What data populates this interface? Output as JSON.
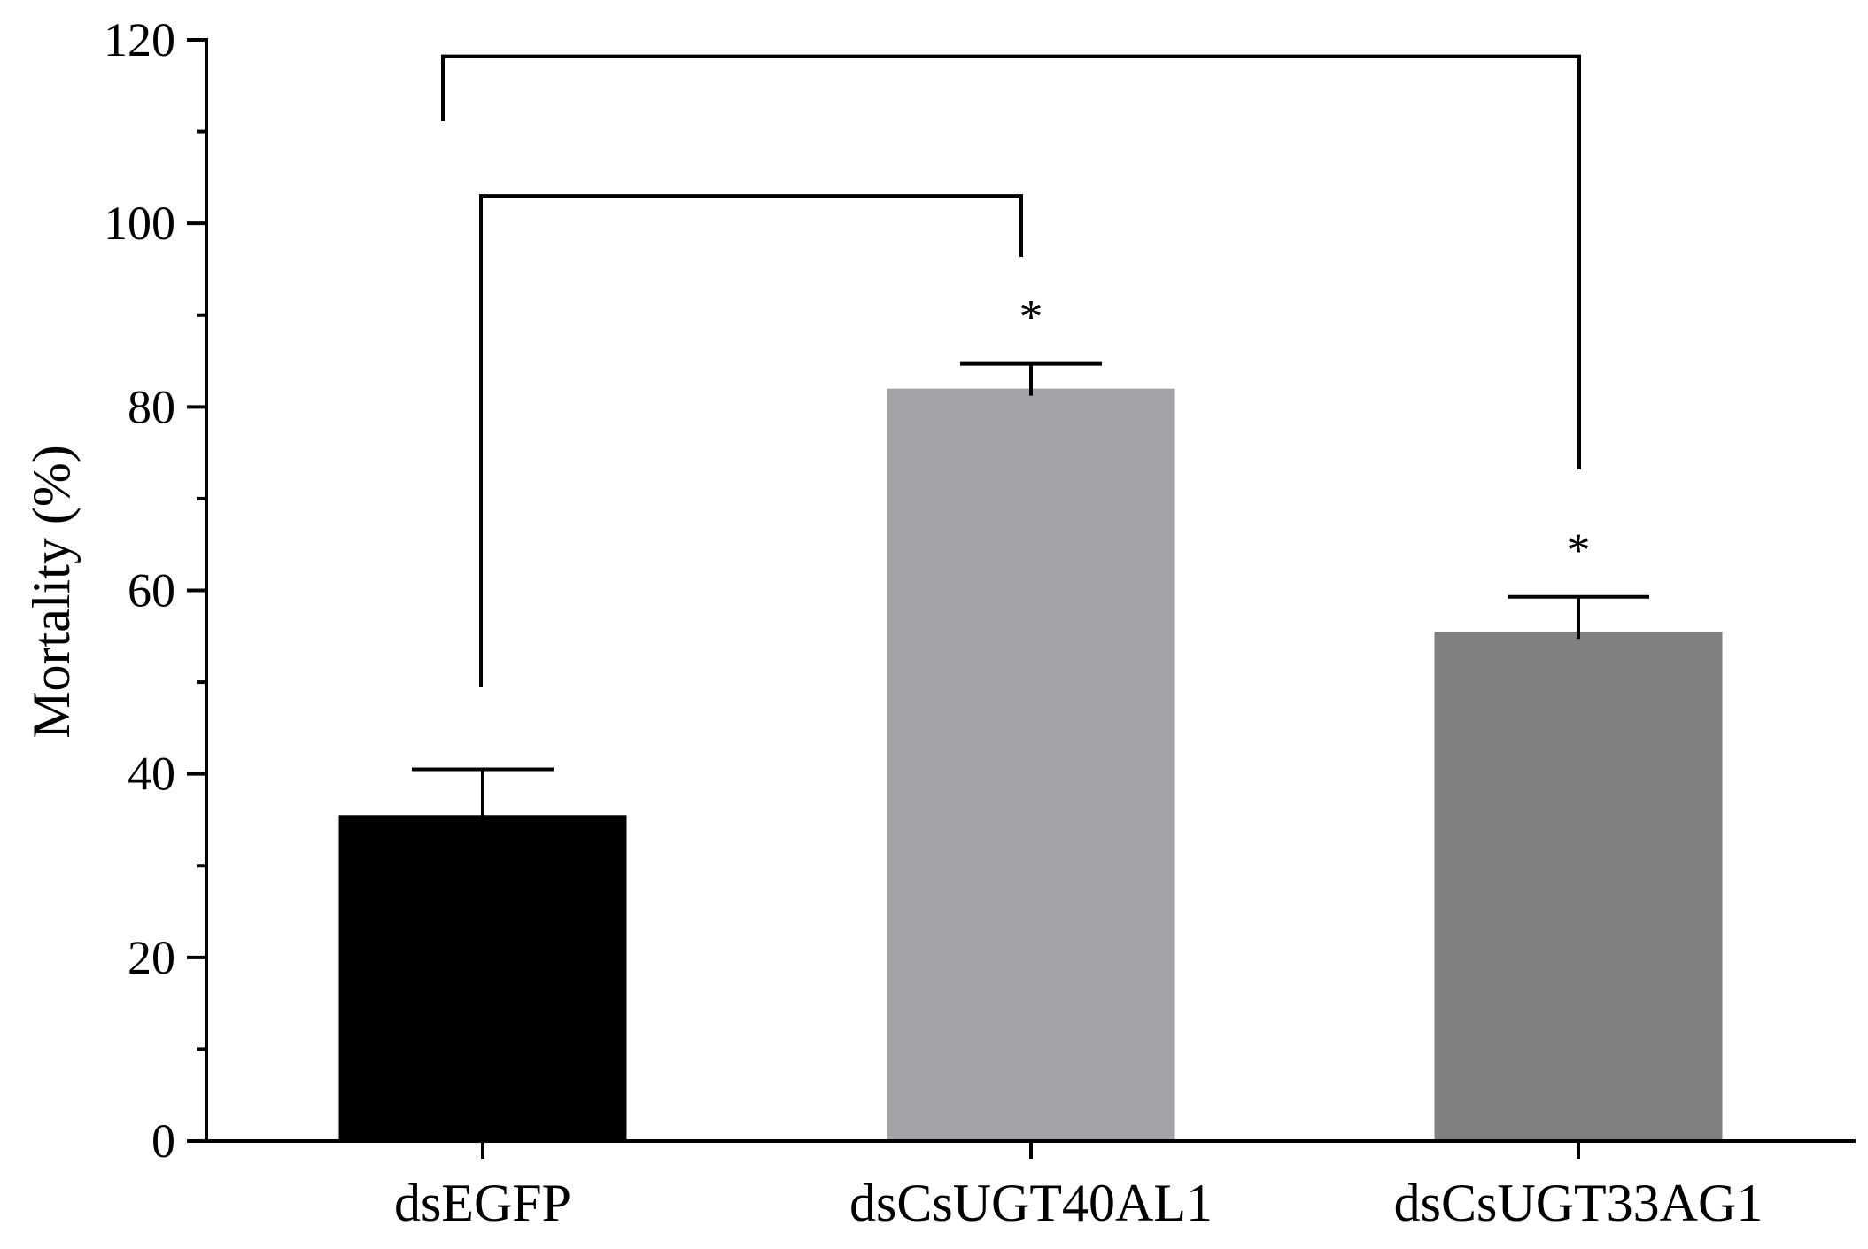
{
  "chart_data": {
    "type": "bar",
    "title": "",
    "xlabel": "",
    "ylabel": "Mortality (%)",
    "ylim": [
      0,
      120
    ],
    "yticks": [
      0,
      20,
      40,
      60,
      80,
      100,
      120
    ],
    "yticks_text": [
      "0",
      "20",
      "40",
      "60",
      "80",
      "100",
      "120"
    ],
    "categories": [
      "dsEGFP",
      "dsCsUGT40AL1",
      "dsCsUGT33AG1"
    ],
    "values": [
      35.5,
      82,
      55.5
    ],
    "error": [
      5.0,
      2.7,
      3.8
    ],
    "colors": [
      "#000000",
      "#a2a3a7",
      "#808080"
    ],
    "significance_marks": [
      "",
      "*",
      "*"
    ],
    "comparisons": [
      {
        "from": "dsEGFP",
        "to": "dsCsUGT40AL1"
      },
      {
        "from": "dsEGFP",
        "to": "dsCsUGT33AG1"
      }
    ],
    "grid": false,
    "legend": "none"
  }
}
